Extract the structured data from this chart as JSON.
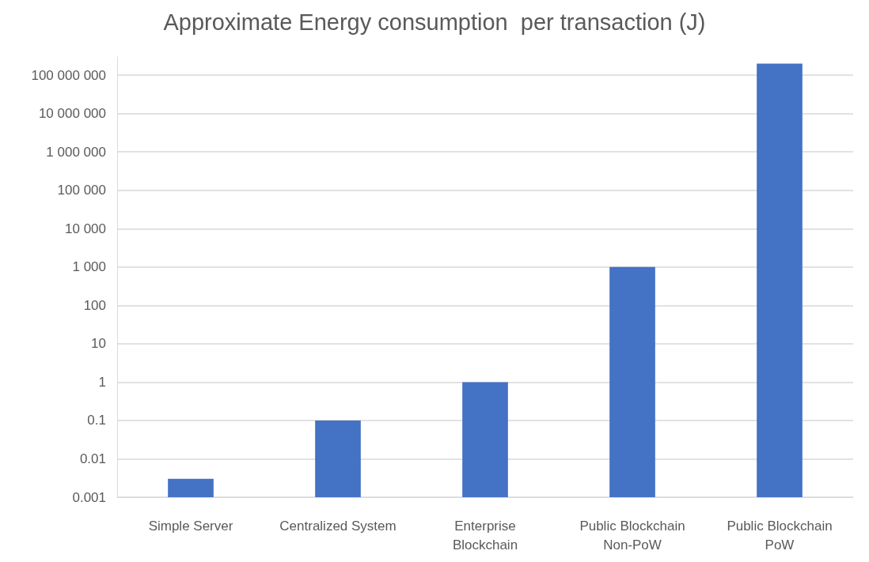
{
  "chart_data": {
    "type": "bar",
    "title": "Approximate Energy consumption  per transaction (J)",
    "categories": [
      "Simple Server",
      "Centralized System",
      "Enterprise\nBlockchain",
      "Public Blockchain\nNon-PoW",
      "Public Blockchain\nPoW"
    ],
    "values": [
      0.003,
      0.1,
      1,
      1000,
      200000000
    ],
    "color": "#4472c4",
    "log": "y",
    "ylim": [
      0.001,
      300000000
    ],
    "yticks": [
      0.001,
      0.01,
      0.1,
      1,
      10,
      100,
      {
        "value": 1000,
        "label": "1 000"
      },
      {
        "value": 10000,
        "label": "10 000"
      },
      {
        "value": 100000,
        "label": "100 000"
      },
      {
        "value": 1000000,
        "label": "1 000 000"
      },
      {
        "value": 10000000,
        "label": "10 000 000"
      },
      {
        "value": 100000000,
        "label": "100 000 000"
      }
    ],
    "grid": "y"
  }
}
